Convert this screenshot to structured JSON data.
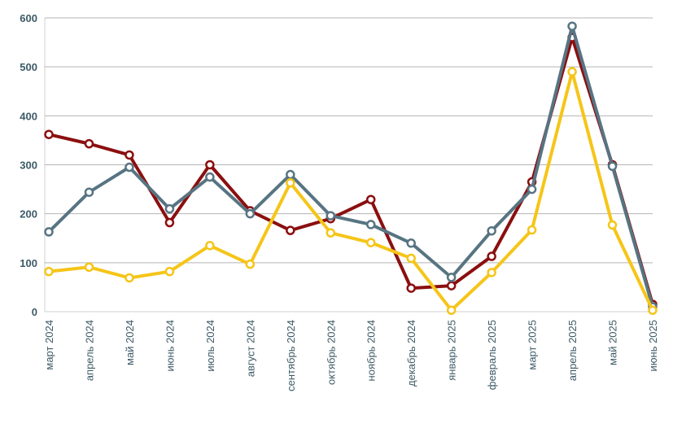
{
  "chart_data": {
    "type": "line",
    "title": "",
    "xlabel": "",
    "ylabel": "",
    "ylim": [
      0,
      600
    ],
    "yticks": [
      "0",
      "100",
      "200",
      "300",
      "400",
      "500",
      "600"
    ],
    "grid": true,
    "legend": "none",
    "categories": [
      "март 2024",
      "апрель 2024",
      "май 2024",
      "июнь 2024",
      "июль 2024",
      "август 2024",
      "сентябрь 2024",
      "октябрь 2024",
      "ноябрь 2024",
      "декабрь 2024",
      "январь 2025",
      "февраль 2025",
      "март 2025",
      "апрель 2025",
      "май 2025",
      "июнь 2025"
    ],
    "series": [
      {
        "color": "#8b0f0f",
        "values": [
          362,
          343,
          320,
          182,
          300,
          206,
          166,
          190,
          229,
          48,
          53,
          113,
          265,
          560,
          300,
          15
        ]
      },
      {
        "color": "#577482",
        "values": [
          163,
          244,
          295,
          210,
          275,
          200,
          280,
          196,
          178,
          140,
          70,
          165,
          250,
          583,
          297,
          10
        ]
      },
      {
        "color": "#f5c518",
        "values": [
          82,
          91,
          69,
          82,
          135,
          97,
          263,
          161,
          141,
          109,
          3,
          80,
          167,
          490,
          177,
          3
        ]
      }
    ]
  }
}
